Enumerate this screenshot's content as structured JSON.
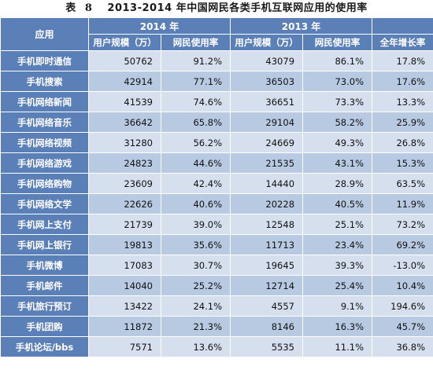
{
  "caption": {
    "prefix": "表",
    "number": "8",
    "title": "2013-2014 年中国网民各类手机互联网应用的使用率"
  },
  "header": {
    "app": "应用",
    "year2014": "2014 年",
    "year2013": "2013 年",
    "users": "用户规模（万）",
    "rate": "网民使用率",
    "growth": "全年增长率"
  },
  "rows": [
    {
      "app": "手机即时通信",
      "u14": "50762",
      "r14": "91.2%",
      "u13": "43079",
      "r13": "86.1%",
      "g": "17.8%"
    },
    {
      "app": "手机搜索",
      "u14": "42914",
      "r14": "77.1%",
      "u13": "36503",
      "r13": "73.0%",
      "g": "17.6%"
    },
    {
      "app": "手机网络新闻",
      "u14": "41539",
      "r14": "74.6%",
      "u13": "36651",
      "r13": "73.3%",
      "g": "13.3%"
    },
    {
      "app": "手机网络音乐",
      "u14": "36642",
      "r14": "65.8%",
      "u13": "29104",
      "r13": "58.2%",
      "g": "25.9%"
    },
    {
      "app": "手机网络视频",
      "u14": "31280",
      "r14": "56.2%",
      "u13": "24669",
      "r13": "49.3%",
      "g": "26.8%"
    },
    {
      "app": "手机网络游戏",
      "u14": "24823",
      "r14": "44.6%",
      "u13": "21535",
      "r13": "43.1%",
      "g": "15.3%"
    },
    {
      "app": "手机网络购物",
      "u14": "23609",
      "r14": "42.4%",
      "u13": "14440",
      "r13": "28.9%",
      "g": "63.5%"
    },
    {
      "app": "手机网络文学",
      "u14": "22626",
      "r14": "40.6%",
      "u13": "20228",
      "r13": "40.5%",
      "g": "11.9%"
    },
    {
      "app": "手机网上支付",
      "u14": "21739",
      "r14": "39.0%",
      "u13": "12548",
      "r13": "25.1%",
      "g": "73.2%"
    },
    {
      "app": "手机网上银行",
      "u14": "19813",
      "r14": "35.6%",
      "u13": "11713",
      "r13": "23.4%",
      "g": "69.2%"
    },
    {
      "app": "手机微博",
      "u14": "17083",
      "r14": "30.7%",
      "u13": "19645",
      "r13": "39.3%",
      "g": "-13.0%"
    },
    {
      "app": "手机邮件",
      "u14": "14040",
      "r14": "25.2%",
      "u13": "12714",
      "r13": "25.4%",
      "g": "10.4%"
    },
    {
      "app": "手机旅行预订",
      "u14": "13422",
      "r14": "24.1%",
      "u13": "4557",
      "r13": "9.1%",
      "g": "194.6%"
    },
    {
      "app": "手机团购",
      "u14": "11872",
      "r14": "21.3%",
      "u13": "8146",
      "r13": "16.3%",
      "g": "45.7%"
    },
    {
      "app": "手机论坛/bbs",
      "u14": "7571",
      "r14": "13.6%",
      "u13": "5535",
      "r13": "11.1%",
      "g": "36.8%"
    }
  ]
}
